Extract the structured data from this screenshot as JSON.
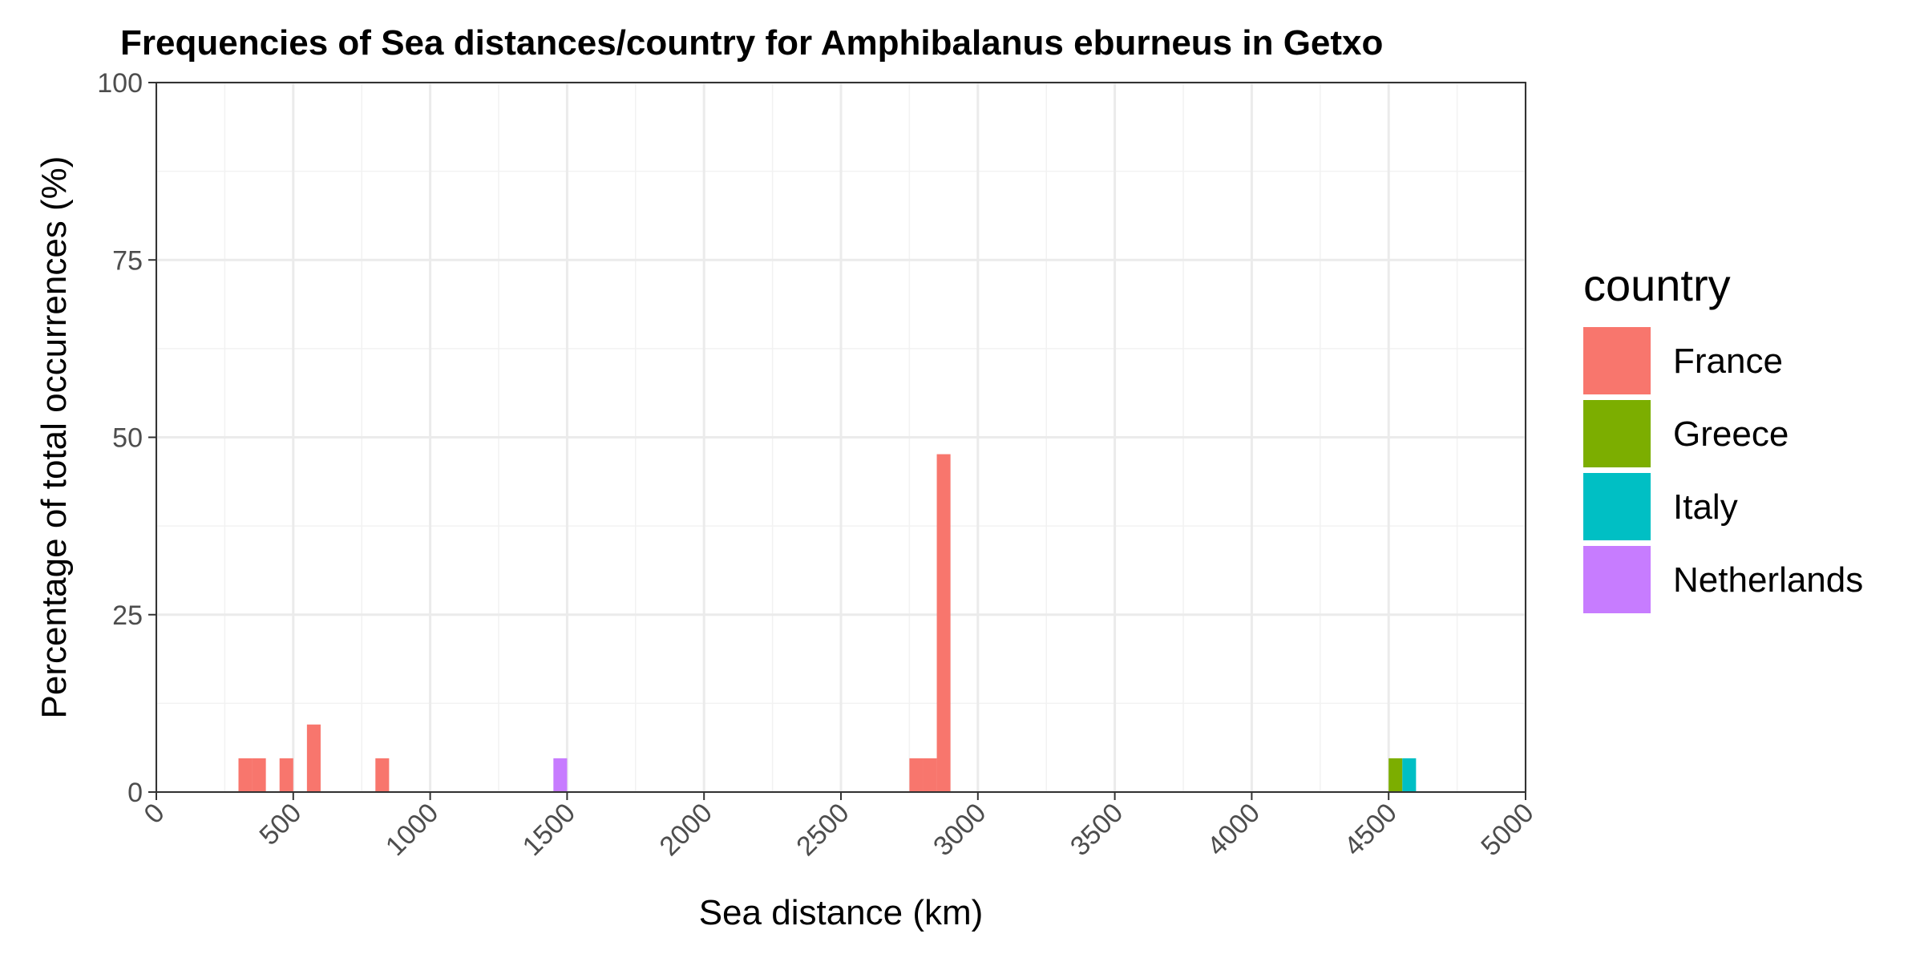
{
  "chart_data": {
    "type": "bar",
    "title": "Frequencies of Sea distances/country for Amphibalanus eburneus in Getxo",
    "xlabel": "Sea distance (km)",
    "ylabel": "Percentage of total occurrences (%)",
    "xlim": [
      0,
      5000
    ],
    "ylim": [
      0,
      100
    ],
    "x_ticks": [
      "0",
      "500",
      "1000",
      "1500",
      "2000",
      "2500",
      "3000",
      "3500",
      "4000",
      "4500",
      "5000"
    ],
    "y_ticks": [
      "0",
      "25",
      "50",
      "75",
      "100"
    ],
    "x_tick_values": [
      0,
      500,
      1000,
      1500,
      2000,
      2500,
      3000,
      3500,
      4000,
      4500,
      5000
    ],
    "y_tick_values": [
      0,
      25,
      50,
      75,
      100
    ],
    "bin_width": 50,
    "grid": true,
    "legend_position": "right",
    "legend_title": "country",
    "series": [
      {
        "name": "France",
        "color": "#F8766D",
        "bins": [
          {
            "x_start": 300,
            "x_end": 350,
            "value": 4.76
          },
          {
            "x_start": 350,
            "x_end": 400,
            "value": 4.76
          },
          {
            "x_start": 450,
            "x_end": 500,
            "value": 4.76
          },
          {
            "x_start": 550,
            "x_end": 600,
            "value": 9.52
          },
          {
            "x_start": 800,
            "x_end": 850,
            "value": 4.76
          },
          {
            "x_start": 2750,
            "x_end": 2800,
            "value": 4.76
          },
          {
            "x_start": 2800,
            "x_end": 2850,
            "value": 4.76
          },
          {
            "x_start": 2850,
            "x_end": 2900,
            "value": 47.62
          }
        ]
      },
      {
        "name": "Greece",
        "color": "#7CAE00",
        "bins": [
          {
            "x_start": 4500,
            "x_end": 4550,
            "value": 4.76
          }
        ]
      },
      {
        "name": "Italy",
        "color": "#00BFC4",
        "bins": [
          {
            "x_start": 4550,
            "x_end": 4600,
            "value": 4.76
          }
        ]
      },
      {
        "name": "Netherlands",
        "color": "#C77CFF",
        "bins": [
          {
            "x_start": 1450,
            "x_end": 1500,
            "value": 4.76
          }
        ]
      }
    ]
  }
}
